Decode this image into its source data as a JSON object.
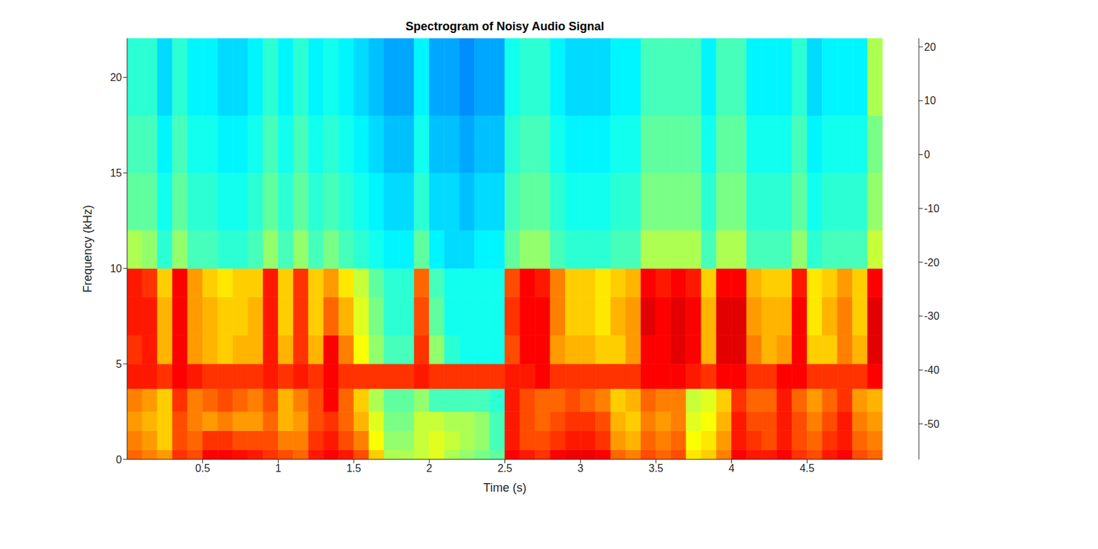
{
  "chart_data": {
    "type": "heatmap",
    "title": "Spectrogram of Noisy Audio Signal",
    "x_label": "Time (s)",
    "y_label": "Frequency (kHz)",
    "xlim": [
      0,
      5
    ],
    "xticks": [
      0.5,
      1,
      1.5,
      2,
      2.5,
      3,
      3.5,
      4,
      4.5
    ],
    "ylim": [
      0,
      22.05
    ],
    "yticks": [
      0,
      5,
      10,
      15,
      20
    ],
    "time_edges": [
      0,
      0.1,
      0.2,
      0.3,
      0.4,
      0.5,
      0.6,
      0.7,
      0.8,
      0.9,
      1,
      1.1,
      1.2,
      1.3,
      1.4,
      1.5,
      1.6,
      1.7,
      1.8,
      1.9,
      2,
      2.1,
      2.2,
      2.3,
      2.4,
      2.5,
      2.6,
      2.7,
      2.8,
      2.9,
      3,
      3.1,
      3.2,
      3.3,
      3.4,
      3.5,
      3.6,
      3.7,
      3.8,
      3.9,
      4,
      4.1,
      4.2,
      4.3,
      4.4,
      4.5,
      4.6,
      4.7,
      4.8,
      4.9,
      5
    ],
    "freq_edges": [
      0,
      0.5,
      1.5,
      2.5,
      3.7,
      5,
      6.5,
      8.5,
      10,
      12,
      15,
      18,
      22.05
    ],
    "cells": [
      [
        4,
        2,
        0,
        8,
        6,
        12,
        12,
        11,
        10,
        8,
        6,
        4,
        10,
        12,
        10,
        6,
        -4,
        -14,
        -14,
        -12,
        -10,
        -14,
        -16,
        -18,
        -20,
        12,
        10,
        8,
        12,
        13,
        13,
        12,
        4,
        2,
        6,
        4,
        6,
        -6,
        -4,
        2,
        12,
        10,
        10,
        12,
        8,
        6,
        10,
        12,
        6,
        4
      ],
      [
        2,
        0,
        -4,
        6,
        4,
        8,
        8,
        6,
        6,
        6,
        2,
        2,
        8,
        10,
        6,
        2,
        -8,
        -16,
        -16,
        -12,
        -10,
        -12,
        -14,
        -16,
        -22,
        10,
        6,
        6,
        8,
        10,
        10,
        8,
        0,
        -2,
        4,
        2,
        4,
        -8,
        -6,
        0,
        10,
        8,
        6,
        10,
        6,
        4,
        8,
        10,
        4,
        2
      ],
      [
        0,
        -2,
        -4,
        6,
        2,
        0,
        2,
        0,
        0,
        4,
        -2,
        0,
        6,
        8,
        4,
        -2,
        -10,
        -18,
        -18,
        -12,
        -12,
        -14,
        -14,
        -16,
        -22,
        10,
        6,
        4,
        6,
        8,
        8,
        6,
        -2,
        -4,
        2,
        0,
        2,
        -10,
        -8,
        -2,
        10,
        6,
        6,
        10,
        6,
        2,
        6,
        10,
        2,
        0
      ],
      [
        2,
        0,
        -4,
        8,
        2,
        4,
        6,
        4,
        2,
        6,
        -2,
        2,
        6,
        12,
        4,
        -4,
        -14,
        -20,
        -20,
        -16,
        -22,
        -22,
        -22,
        -22,
        -24,
        10,
        6,
        4,
        4,
        6,
        4,
        2,
        -4,
        -2,
        4,
        2,
        2,
        -12,
        -10,
        -4,
        8,
        4,
        4,
        10,
        4,
        0,
        4,
        8,
        0,
        -2
      ],
      [
        10,
        10,
        8,
        12,
        10,
        8,
        8,
        8,
        8,
        10,
        8,
        10,
        8,
        12,
        8,
        8,
        8,
        8,
        8,
        10,
        8,
        8,
        8,
        8,
        8,
        10,
        10,
        12,
        8,
        8,
        8,
        8,
        8,
        8,
        12,
        12,
        12,
        10,
        8,
        12,
        12,
        8,
        8,
        12,
        12,
        8,
        8,
        8,
        8,
        12
      ],
      [
        8,
        10,
        -2,
        12,
        0,
        -2,
        -4,
        -2,
        -2,
        10,
        -2,
        8,
        -2,
        12,
        2,
        -8,
        -16,
        -22,
        -22,
        8,
        -16,
        -24,
        -26,
        -26,
        -26,
        6,
        12,
        12,
        0,
        -2,
        -2,
        -4,
        -4,
        0,
        12,
        12,
        14,
        12,
        -2,
        14,
        14,
        2,
        -2,
        0,
        12,
        -4,
        -4,
        2,
        -2,
        14
      ],
      [
        10,
        10,
        -2,
        12,
        0,
        -2,
        -4,
        -4,
        -2,
        10,
        -4,
        8,
        -4,
        4,
        -2,
        -10,
        -18,
        -24,
        -24,
        6,
        -20,
        -26,
        -26,
        -26,
        -26,
        8,
        12,
        12,
        2,
        -4,
        -4,
        -6,
        -2,
        0,
        14,
        12,
        14,
        12,
        -2,
        14,
        14,
        0,
        -2,
        -2,
        12,
        -6,
        -2,
        2,
        -4,
        14
      ],
      [
        10,
        8,
        -4,
        12,
        0,
        -4,
        -6,
        -4,
        -4,
        10,
        -4,
        8,
        -4,
        0,
        -6,
        -12,
        -20,
        -24,
        -24,
        4,
        -22,
        -26,
        -26,
        -26,
        -26,
        6,
        12,
        10,
        2,
        -4,
        -4,
        -6,
        -4,
        -2,
        12,
        10,
        12,
        10,
        -4,
        12,
        12,
        -2,
        -4,
        -4,
        10,
        -6,
        -4,
        0,
        -4,
        12
      ],
      [
        -14,
        -16,
        -24,
        -16,
        -22,
        -22,
        -24,
        -24,
        -22,
        -16,
        -22,
        -16,
        -22,
        -18,
        -22,
        -24,
        -26,
        -28,
        -28,
        -20,
        -28,
        -30,
        -30,
        -28,
        -28,
        -20,
        -16,
        -16,
        -22,
        -24,
        -24,
        -24,
        -22,
        -22,
        -14,
        -14,
        -14,
        -14,
        -22,
        -14,
        -14,
        -22,
        -22,
        -22,
        -16,
        -24,
        -22,
        -22,
        -22,
        -12
      ],
      [
        -20,
        -20,
        -26,
        -20,
        -24,
        -24,
        -26,
        -26,
        -24,
        -20,
        -24,
        -20,
        -24,
        -22,
        -24,
        -26,
        -28,
        -30,
        -30,
        -24,
        -30,
        -30,
        -32,
        -30,
        -30,
        -22,
        -20,
        -20,
        -24,
        -26,
        -26,
        -26,
        -24,
        -24,
        -18,
        -18,
        -18,
        -18,
        -24,
        -18,
        -18,
        -24,
        -24,
        -24,
        -20,
        -26,
        -24,
        -24,
        -24,
        -16
      ],
      [
        -22,
        -22,
        -28,
        -22,
        -26,
        -26,
        -28,
        -28,
        -26,
        -22,
        -26,
        -22,
        -26,
        -24,
        -26,
        -28,
        -30,
        -32,
        -32,
        -26,
        -32,
        -32,
        -34,
        -32,
        -32,
        -24,
        -22,
        -22,
        -26,
        -28,
        -28,
        -28,
        -26,
        -26,
        -20,
        -20,
        -20,
        -20,
        -26,
        -20,
        -20,
        -26,
        -26,
        -26,
        -22,
        -28,
        -26,
        -26,
        -26,
        -18
      ],
      [
        -24,
        -24,
        -30,
        -24,
        -28,
        -28,
        -30,
        -30,
        -28,
        -24,
        -28,
        -24,
        -28,
        -26,
        -28,
        -30,
        -32,
        -34,
        -34,
        -28,
        -34,
        -34,
        -36,
        -34,
        -34,
        -26,
        -24,
        -24,
        -28,
        -30,
        -30,
        -30,
        -28,
        -28,
        -22,
        -22,
        -22,
        -22,
        -28,
        -22,
        -22,
        -28,
        -28,
        -28,
        -24,
        -30,
        -28,
        -28,
        -28,
        -14
      ]
    ],
    "colorbar": {
      "range": [
        -56.6,
        21.6
      ],
      "ticks": [
        -50,
        -40,
        -30,
        -20,
        -10,
        0,
        10,
        20
      ]
    }
  }
}
